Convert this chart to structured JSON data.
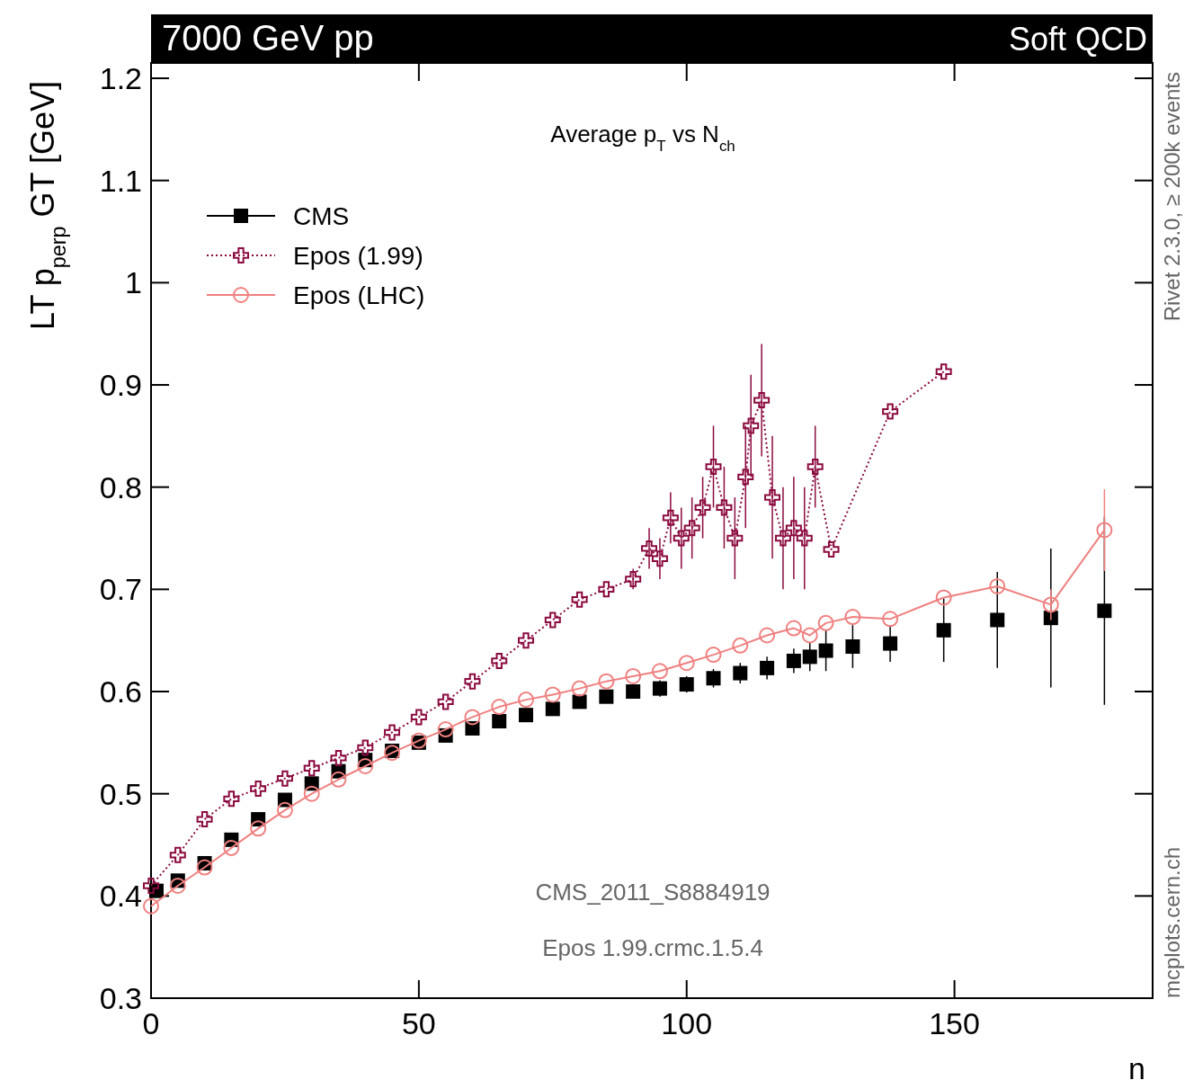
{
  "chart_data": {
    "type": "line",
    "title": "7000 GeV pp",
    "subtitle": "Soft QCD",
    "xlabel": "n",
    "ylabel": "LT p$_{perp}$ GT [GeV]",
    "annotations": [
      "Average p$_{T}$ vs N$_{ch}$",
      "CMS_2011_S8884919",
      "Epos 1.99.crmc.1.5.4",
      "Rivet 2.3.0, ≥ 200k events",
      "mcplots.cern.ch"
    ],
    "xlim": [
      0,
      187
    ],
    "ylim": [
      0.3,
      1.215
    ],
    "xticks": [
      0,
      50,
      100,
      150
    ],
    "yticks": [
      0.3,
      0.4,
      0.5,
      0.6,
      0.7,
      0.8,
      0.9,
      1,
      1.1,
      1.2
    ],
    "legend": "top left",
    "grid": false,
    "series": [
      {
        "name": "CMS",
        "type": "scatter",
        "marker": "square",
        "color": "#000000",
        "x": [
          1,
          5,
          10,
          15,
          20,
          25,
          30,
          35,
          40,
          45,
          50,
          55,
          60,
          65,
          70,
          75,
          80,
          85,
          90,
          95,
          100,
          105,
          110,
          115,
          120,
          123,
          126,
          131,
          138,
          148,
          158,
          168,
          178
        ],
        "values": [
          0.405,
          0.415,
          0.432,
          0.455,
          0.475,
          0.494,
          0.51,
          0.522,
          0.533,
          0.542,
          0.55,
          0.557,
          0.564,
          0.571,
          0.577,
          0.583,
          0.59,
          0.595,
          0.6,
          0.603,
          0.607,
          0.613,
          0.618,
          0.623,
          0.63,
          0.634,
          0.64,
          0.644,
          0.647,
          0.66,
          0.67,
          0.672,
          0.679
        ],
        "errors": [
          0.003,
          0.003,
          0.003,
          0.003,
          0.003,
          0.003,
          0.003,
          0.003,
          0.003,
          0.003,
          0.004,
          0.004,
          0.004,
          0.005,
          0.005,
          0.005,
          0.006,
          0.006,
          0.007,
          0.008,
          0.008,
          0.009,
          0.01,
          0.011,
          0.012,
          0.014,
          0.02,
          0.021,
          0.018,
          0.031,
          0.047,
          0.068,
          0.092
        ]
      },
      {
        "name": "Epos (1.99)",
        "marker": "cross",
        "line_style": "dotted",
        "color": "#8b0a3f",
        "x": [
          0,
          5,
          10,
          15,
          20,
          25,
          30,
          35,
          40,
          45,
          50,
          55,
          60,
          65,
          70,
          75,
          80,
          85,
          90,
          93,
          95,
          97,
          99,
          101,
          103,
          105,
          107,
          109,
          111,
          112,
          114,
          116,
          118,
          120,
          122,
          124,
          127,
          138,
          148
        ],
        "values": [
          0.41,
          0.44,
          0.475,
          0.495,
          0.505,
          0.515,
          0.525,
          0.535,
          0.545,
          0.56,
          0.575,
          0.59,
          0.61,
          0.63,
          0.65,
          0.67,
          0.69,
          0.7,
          0.71,
          0.74,
          0.73,
          0.77,
          0.75,
          0.76,
          0.78,
          0.82,
          0.78,
          0.75,
          0.81,
          0.86,
          0.885,
          0.79,
          0.75,
          0.76,
          0.75,
          0.82,
          0.739,
          0.874,
          0.913
        ],
        "errors": [
          null,
          null,
          null,
          null,
          null,
          null,
          null,
          null,
          null,
          null,
          null,
          null,
          null,
          null,
          null,
          null,
          null,
          null,
          0.01,
          0.02,
          0.02,
          0.025,
          0.03,
          0.03,
          0.03,
          0.04,
          0.04,
          0.04,
          0.05,
          0.05,
          0.055,
          0.06,
          0.05,
          0.05,
          0.05,
          0.04,
          null,
          null,
          null
        ]
      },
      {
        "name": "Epos (LHC)",
        "marker": "circle",
        "line_style": "solid",
        "color": "#f08080",
        "x": [
          0,
          5,
          10,
          15,
          20,
          25,
          30,
          35,
          40,
          45,
          50,
          55,
          60,
          65,
          70,
          75,
          80,
          85,
          90,
          95,
          100,
          105,
          110,
          115,
          120,
          123,
          126,
          131,
          138,
          148,
          158,
          168,
          178
        ],
        "values": [
          0.39,
          0.41,
          0.428,
          0.447,
          0.466,
          0.484,
          0.5,
          0.514,
          0.527,
          0.54,
          0.552,
          0.563,
          0.575,
          0.585,
          0.592,
          0.597,
          0.603,
          0.61,
          0.615,
          0.62,
          0.628,
          0.636,
          0.645,
          0.655,
          0.662,
          0.655,
          0.667,
          0.673,
          0.671,
          0.692,
          0.703,
          0.685,
          0.758
        ],
        "errors": [
          null,
          null,
          null,
          null,
          null,
          null,
          null,
          null,
          null,
          null,
          null,
          null,
          null,
          null,
          null,
          null,
          null,
          null,
          null,
          null,
          null,
          null,
          null,
          null,
          null,
          null,
          null,
          null,
          null,
          null,
          null,
          0.015,
          0.04
        ]
      }
    ]
  }
}
